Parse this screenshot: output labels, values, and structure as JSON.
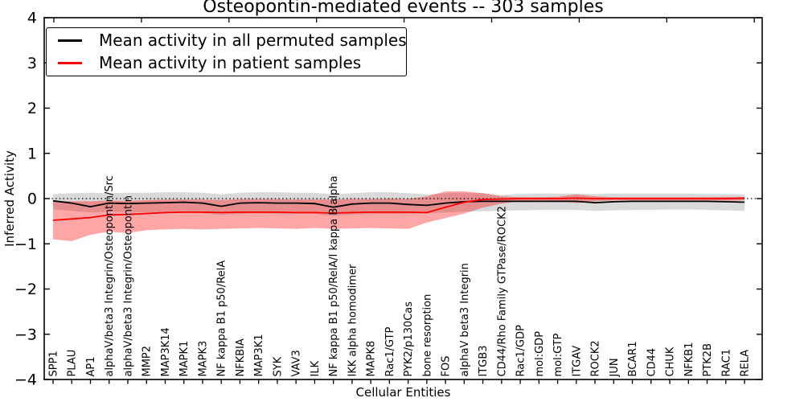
{
  "chart_data": {
    "type": "line",
    "title": "Osteopontin-mediated events -- 303 samples",
    "xlabel": "Cellular Entities",
    "ylabel": "Inferred Activity",
    "ylim": [
      -4,
      4
    ],
    "yticks": [
      -4,
      -3,
      -2,
      -1,
      0,
      1,
      2,
      3,
      4
    ],
    "grid": false,
    "zero_line": "dotted",
    "legend_position": "upper left",
    "categories": [
      "SPP1",
      "PLAU",
      "AP1",
      "alphaV/beta3 Integrin/Osteopontin/Src",
      "alphaV/beta3 Integrin/Osteopontin",
      "MMP2",
      "MAP3K14",
      "MAPK1",
      "MAPK3",
      "NF kappa B1 p50/RelA",
      "NFKBIA",
      "MAP3K1",
      "SYK",
      "VAV3",
      "ILK",
      "NF kappa B1 p50/RelA/I kappa B alpha",
      "IKK alpha homodimer",
      "MAPK8",
      "Rac1/GTP",
      "PYK2/p130Cas",
      "bone resorption",
      "FOS",
      "alphaV beta3 Integrin",
      "ITGB3",
      "CD44/Rho Family GTPase/ROCK2",
      "Rac1/GDP",
      "mol:GDP",
      "mol:GTP",
      "ITGAV",
      "ROCK2",
      "JUN",
      "BCAR1",
      "CD44",
      "CHUK",
      "NFKB1",
      "PTK2B",
      "RAC1",
      "RELA"
    ],
    "series": [
      {
        "name": "Mean activity in all permuted samples",
        "color": "#000000",
        "band_color": "#808080",
        "values": [
          -0.05,
          -0.1,
          -0.18,
          -0.1,
          -0.11,
          -0.1,
          -0.09,
          -0.08,
          -0.1,
          -0.17,
          -0.1,
          -0.09,
          -0.1,
          -0.1,
          -0.11,
          -0.19,
          -0.12,
          -0.1,
          -0.1,
          -0.13,
          -0.15,
          -0.1,
          -0.07,
          -0.06,
          -0.06,
          -0.06,
          -0.06,
          -0.06,
          -0.06,
          -0.09,
          -0.07,
          -0.06,
          -0.06,
          -0.06,
          -0.06,
          -0.06,
          -0.07,
          -0.08
        ],
        "band_upper": [
          0.1,
          0.12,
          0.13,
          0.12,
          0.13,
          0.13,
          0.14,
          0.14,
          0.13,
          0.09,
          0.13,
          0.14,
          0.14,
          0.13,
          0.13,
          0.09,
          0.12,
          0.14,
          0.14,
          0.12,
          0.09,
          0.12,
          0.13,
          0.12,
          0.08,
          0.1,
          0.11,
          0.11,
          0.11,
          0.1,
          0.11,
          0.11,
          0.11,
          0.11,
          0.11,
          0.1,
          0.1,
          0.09
        ],
        "band_lower": [
          -0.24,
          -0.27,
          -0.31,
          -0.29,
          -0.3,
          -0.31,
          -0.32,
          -0.31,
          -0.32,
          -0.36,
          -0.34,
          -0.33,
          -0.34,
          -0.34,
          -0.34,
          -0.38,
          -0.35,
          -0.34,
          -0.34,
          -0.34,
          -0.33,
          -0.31,
          -0.29,
          -0.28,
          -0.27,
          -0.26,
          -0.25,
          -0.25,
          -0.25,
          -0.27,
          -0.26,
          -0.25,
          -0.25,
          -0.24,
          -0.24,
          -0.25,
          -0.26,
          -0.27
        ]
      },
      {
        "name": "Mean activity in patient samples",
        "color": "#ff0000",
        "band_color": "#ff0000",
        "values": [
          -0.48,
          -0.45,
          -0.42,
          -0.36,
          -0.35,
          -0.33,
          -0.31,
          -0.3,
          -0.3,
          -0.31,
          -0.3,
          -0.3,
          -0.3,
          -0.31,
          -0.31,
          -0.32,
          -0.31,
          -0.3,
          -0.3,
          -0.3,
          -0.31,
          -0.19,
          -0.08,
          -0.02,
          -0.01,
          0.0,
          0.0,
          0.0,
          0.01,
          0.0,
          0.0,
          0.0,
          0.0,
          0.0,
          0.0,
          0.0,
          0.0,
          0.01
        ],
        "band_upper": [
          -0.05,
          -0.06,
          -0.06,
          -0.04,
          -0.05,
          -0.03,
          -0.02,
          -0.02,
          -0.02,
          -0.03,
          -0.01,
          -0.01,
          -0.01,
          -0.02,
          -0.02,
          -0.02,
          -0.01,
          -0.01,
          0.0,
          -0.01,
          0.05,
          0.16,
          0.16,
          0.12,
          0.05,
          0.03,
          0.03,
          0.04,
          0.09,
          0.05,
          0.03,
          0.03,
          0.03,
          0.03,
          0.03,
          0.03,
          0.04,
          0.03
        ],
        "band_lower": [
          -0.9,
          -0.94,
          -0.8,
          -0.73,
          -0.76,
          -0.7,
          -0.68,
          -0.67,
          -0.68,
          -0.67,
          -0.66,
          -0.65,
          -0.66,
          -0.67,
          -0.65,
          -0.67,
          -0.66,
          -0.65,
          -0.66,
          -0.67,
          -0.53,
          -0.43,
          -0.33,
          -0.2,
          -0.11,
          -0.06,
          -0.04,
          -0.05,
          -0.1,
          -0.06,
          -0.04,
          -0.04,
          -0.04,
          -0.04,
          -0.04,
          -0.04,
          -0.05,
          -0.04
        ]
      }
    ]
  }
}
